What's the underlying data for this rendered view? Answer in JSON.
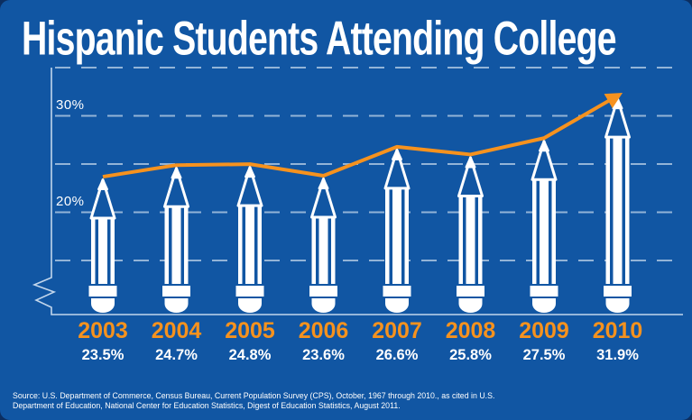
{
  "title": "Hispanic Students Attending College",
  "source": "Source: U.S. Department of Commerce, Census Bureau, Current Population Survey (CPS), October, 1967 through 2010., as cited in U.S. Department of Education, National Center for Education Statistics, Digest of Education Statistics, August 2011.",
  "colors": {
    "background": "#1156A3",
    "frame": "#0C2E60",
    "accent_orange": "#F6921E",
    "text_white": "#FFFFFF",
    "gridline": "rgba(235,243,250,0.6)",
    "axis": "#C2D6EC"
  },
  "chart_data": {
    "type": "bar",
    "title": "Hispanic Students Attending College",
    "categories": [
      "2003",
      "2004",
      "2005",
      "2006",
      "2007",
      "2008",
      "2009",
      "2010"
    ],
    "values": [
      23.5,
      24.7,
      24.8,
      23.6,
      26.6,
      25.8,
      27.5,
      31.9
    ],
    "value_labels": [
      "23.5%",
      "24.7%",
      "24.8%",
      "23.6%",
      "26.6%",
      "25.8%",
      "27.5%",
      "31.9%"
    ],
    "xlabel": "",
    "ylabel": "",
    "y_ticks": [
      {
        "value": 30,
        "label": "30%"
      },
      {
        "value": 20,
        "label": "20%"
      }
    ],
    "y_gridlines": [
      35,
      30,
      25,
      20,
      15
    ],
    "ylim_visible": [
      12,
      36
    ],
    "axis_break": true,
    "grid": "dashed horizontal",
    "bar_style": "pencil",
    "overlay_line": {
      "series": "same as values",
      "color": "#F6921E",
      "arrow_end": true
    },
    "legend": null
  }
}
